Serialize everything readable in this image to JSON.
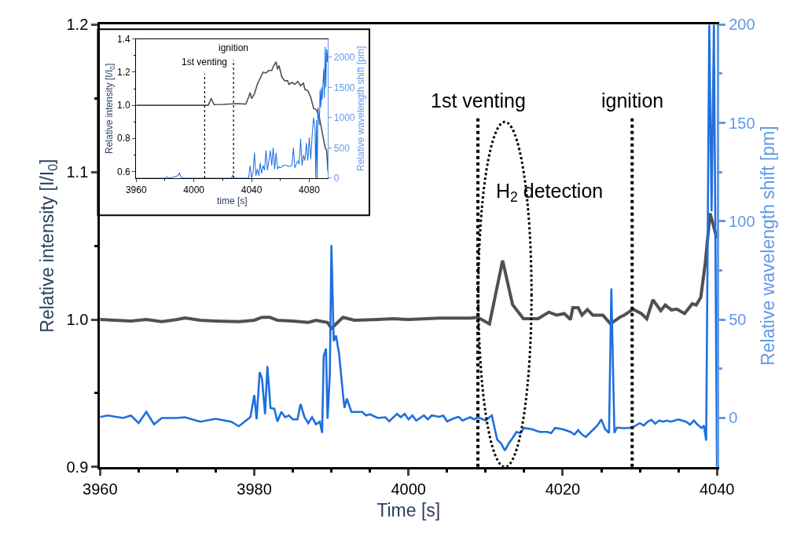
{
  "chart_data": [
    {
      "type": "line",
      "xlabel": "Time [s]",
      "ylabel": "Relative intensity [I/I$_{0}$]",
      "y2label": "Relative wavelength shift [pm]",
      "xlim": [
        3960,
        4040
      ],
      "xticks": [
        3960,
        {
          "value": 3965,
          "label": null
        },
        {
          "value": 3970,
          "label": null
        },
        {
          "value": 3975,
          "label": null
        },
        3980,
        {
          "value": 3985,
          "label": null
        },
        {
          "value": 3990,
          "label": null
        },
        {
          "value": 3995,
          "label": null
        },
        4000,
        {
          "value": 4005,
          "label": null
        },
        {
          "value": 4010,
          "label": null
        },
        {
          "value": 4015,
          "label": null
        },
        4020,
        {
          "value": 4025,
          "label": null
        },
        {
          "value": 4030,
          "label": null
        },
        {
          "value": 4035,
          "label": null
        },
        4040
      ],
      "ylim": [
        0.9,
        1.2
      ],
      "yticks": [
        0.9,
        {
          "value": 0.95,
          "label": null
        },
        {
          "value": 1.0,
          "label": "1.0"
        },
        {
          "value": 1.05,
          "label": null
        },
        1.1,
        {
          "value": 1.15,
          "label": null
        },
        1.2
      ],
      "y2lim": [
        -25,
        200
      ],
      "y2ticks": [
        0,
        {
          "value": 25,
          "label": null
        },
        50,
        {
          "value": 75,
          "label": null
        },
        100,
        {
          "value": 125,
          "label": null
        },
        150,
        {
          "value": 175,
          "label": null
        },
        200
      ],
      "grid": false,
      "marker": "none",
      "line_style": "solid",
      "series": [
        {
          "color": "#505050",
          "x": [
            3960,
            3962,
            3964,
            3966,
            3968,
            3970,
            3971,
            3973,
            3975,
            3978,
            3980,
            3981,
            3982,
            3983,
            3985,
            3987,
            3988,
            3989.5,
            3990,
            3991.5,
            3993,
            3996,
            3998,
            4000,
            4004,
            4008,
            4009,
            4010.5,
            4012.2,
            4013.5,
            4014.9,
            4016.8,
            4018.2,
            4019.2,
            4020.2,
            4021,
            4021.3,
            4022,
            4022.5,
            4023.2,
            4023.9,
            4025.2,
            4026.2,
            4027.4,
            4028,
            4029.1,
            4030.2,
            4030.9,
            4031.7,
            4032.7,
            4033.3,
            4034.1,
            4034.8,
            4035.8,
            4036.8,
            4037.3,
            4037.9,
            4038.5,
            4039.1,
            4040
          ],
          "values": [
            1.0,
            0.9995,
            0.999,
            1.0,
            0.9985,
            1.0,
            1.001,
            0.9995,
            0.999,
            0.9985,
            0.9995,
            1.0015,
            1.0015,
            0.9995,
            0.999,
            0.998,
            0.9995,
            0.998,
            0.994,
            1.0015,
            0.9995,
            1.0,
            1.0005,
            1.0,
            1.001,
            1.001,
            1.0015,
            0.997,
            1.04,
            1.01,
            1.0005,
            1.0005,
            1.005,
            1.003,
            1.004,
            1.0,
            1.008,
            1.008,
            1.003,
            1.0067,
            1.003,
            1.003,
            0.997,
            1.0015,
            1.003,
            1.007,
            1.004,
            1.0005,
            1.0134,
            1.006,
            1.0098,
            1.0065,
            1.007,
            1.004,
            1.0107,
            1.0098,
            1.015,
            1.039,
            1.072,
            1.055
          ]
        },
        {
          "color": "#1f6fdf",
          "axis": "y2",
          "x": [
            3960,
            3961,
            3963,
            3964,
            3965,
            3966,
            3967,
            3968,
            3970,
            3971,
            3973,
            3975,
            3977,
            3978,
            3979.5,
            3980,
            3980.3,
            3980.7,
            3981,
            3981.4,
            3981.7,
            3982.1,
            3982.6,
            3983,
            3983.5,
            3984,
            3984.5,
            3985,
            3985.6,
            3986,
            3986.5,
            3987,
            3987.5,
            3988,
            3988.5,
            3988.8,
            3989,
            3989.3,
            3989.5,
            3989.8,
            3990,
            3990.3,
            3990.6,
            3991,
            3991.5,
            3991.7,
            3992,
            3992.6,
            3994,
            3994.5,
            3995,
            3996,
            3997,
            3997.5,
            3998.5,
            3999,
            3999.5,
            4000,
            4000.5,
            4001,
            4002,
            4002.5,
            4003,
            4004,
            4004.5,
            4005,
            4006,
            4006.5,
            4007,
            4008,
            4008.5,
            4009,
            4010,
            4010.5,
            4010.8,
            4011.5,
            4012,
            4012.5,
            4013,
            4013.5,
            4014,
            4014.5,
            4015,
            4016,
            4017,
            4018,
            4018.5,
            4019,
            4020,
            4021,
            4021.5,
            4022,
            4022.5,
            4023,
            4024,
            4024.5,
            4025,
            4025.5,
            4026,
            4026.3,
            4026.7,
            4027,
            4028,
            4029,
            4030,
            4030.5,
            4031,
            4031.5,
            4032,
            4032.5,
            4033,
            4033.5,
            4034,
            4035,
            4036,
            4036.5,
            4037,
            4037.5,
            4038,
            4038.3,
            4038.6,
            4039,
            4039.3,
            4039.6,
            4040
          ],
          "values": [
            0.4,
            1.2,
            -0.1,
            1.2,
            -2.7,
            3,
            -3.3,
            -0.1,
            -0.1,
            0.3,
            -2,
            -0.5,
            -2,
            -4.3,
            0.4,
            11.6,
            -0.8,
            23.2,
            20,
            1.8,
            26.3,
            5,
            4.6,
            -1.9,
            3,
            0.3,
            1.2,
            -0.8,
            -0.8,
            7,
            0.4,
            -2.7,
            0.3,
            -3.3,
            -2,
            -7.7,
            31.3,
            35.2,
            -0.5,
            22.4,
            87.8,
            39,
            41.8,
            32.5,
            12,
            5,
            9.8,
            3,
            3,
            1.2,
            1.8,
            -0.1,
            0.3,
            -1.8,
            2,
            0.3,
            2,
            -0.8,
            1.2,
            -1.4,
            1.2,
            -0.8,
            1.2,
            0.5,
            1.2,
            -1.8,
            -0.1,
            0.5,
            -1.4,
            0.3,
            -0.8,
            0.3,
            -1.4,
            0.3,
            1.2,
            -11.1,
            -13,
            -16.6,
            -13,
            -10.3,
            -7.2,
            -7.8,
            -5.2,
            -5.8,
            -7.2,
            -7.2,
            -7.8,
            -5.2,
            -5.8,
            -7.2,
            -8.5,
            -6.3,
            -8.5,
            -9.7,
            -5.8,
            -3.9,
            -0.8,
            -5.8,
            -7.7,
            65.8,
            -7.7,
            -5,
            -5.3,
            -5,
            -2.7,
            -3.9,
            -2,
            -1,
            -3,
            -1.4,
            -2,
            -1.4,
            -2,
            -0.8,
            -2,
            -3.5,
            -1.4,
            -3.5,
            -5.2,
            -3.9,
            -11.6,
            200,
            105,
            200,
            -25
          ]
        }
      ],
      "ref_lines": [
        {
          "axis": "x",
          "value": 4009,
          "label": "1st venting",
          "line_style": "dotted",
          "color": "#000000"
        },
        {
          "axis": "x",
          "value": 4029,
          "label": "ignition",
          "line_style": "dotted",
          "color": "#000000"
        }
      ],
      "annotations": [
        {
          "text": "H$_{2}$ detection",
          "x": 4012.5,
          "y": 1.04
        }
      ]
    },
    {
      "type": "line",
      "xlabel": "time [s]",
      "ylabel": "Relative intensity [I/I$_{0}$]",
      "y2label": "Relative wavelength shift [pm]",
      "xlim": [
        3960,
        4093
      ],
      "xticks": [
        3960,
        {
          "value": 3980,
          "label": null
        },
        4000,
        {
          "value": 4020,
          "label": null
        },
        4040,
        {
          "value": 4060,
          "label": null
        },
        4080
      ],
      "ylim": [
        0.56,
        1.4
      ],
      "yticks": [
        0.6,
        {
          "value": 0.7,
          "label": null
        },
        0.8,
        {
          "value": 0.9,
          "label": null
        },
        {
          "value": 1.0,
          "label": "1.0"
        },
        {
          "value": 1.1,
          "label": null
        },
        1.2,
        {
          "value": 1.3,
          "label": null
        },
        1.4
      ],
      "y2lim": [
        0,
        2300
      ],
      "y2ticks": [
        0,
        500,
        1000,
        1500,
        2000
      ],
      "grid": false,
      "marker": "none",
      "line_style": "solid",
      "series": [
        {
          "color": "#505050",
          "x": [
            3960,
            3980,
            4000,
            4010,
            4012,
            4014,
            4020,
            4030,
            4036,
            4038,
            4039,
            4040,
            4042,
            4044,
            4046,
            4048,
            4050,
            4052,
            4054,
            4055,
            4057,
            4058,
            4059,
            4061,
            4063,
            4065,
            4066,
            4068,
            4070,
            4072,
            4074,
            4076,
            4077,
            4079,
            4081,
            4083,
            4085,
            4087,
            4089,
            4091,
            4092,
            4093
          ],
          "values": [
            1.0,
            1.0,
            1.0,
            1.0,
            1.042,
            1.004,
            1.005,
            1.01,
            1.007,
            1.05,
            1.077,
            1.04,
            1.07,
            1.126,
            1.164,
            1.2,
            1.195,
            1.21,
            1.21,
            1.232,
            1.263,
            1.217,
            1.24,
            1.171,
            1.148,
            1.148,
            1.126,
            1.138,
            1.126,
            1.144,
            1.118,
            1.133,
            1.095,
            1.088,
            1.049,
            0.981,
            0.973,
            0.927,
            0.836,
            0.745,
            0.729,
            0.6
          ]
        },
        {
          "color": "#1f6fdf",
          "axis": "y2",
          "x": [
            3960,
            3980,
            3981,
            3983,
            3989,
            3990,
            3991,
            3993,
            4026,
            4027,
            4028,
            4038,
            4039,
            4040,
            4041,
            4042,
            4043,
            4044,
            4045,
            4046,
            4047,
            4048,
            4049,
            4050,
            4051,
            4052,
            4053,
            4054,
            4055,
            4056,
            4057,
            4058,
            4059,
            4060,
            4062,
            4064,
            4066,
            4068,
            4069,
            4070,
            4072,
            4073,
            4074,
            4075,
            4076,
            4077,
            4078,
            4079,
            4080,
            4081,
            4082,
            4083,
            4084,
            4084.5,
            4085,
            4085.5,
            4086,
            4087,
            4087.5,
            4088,
            4088.5,
            4089,
            4090,
            4090.5,
            4091,
            4091.5,
            4092,
            4092.5,
            4093
          ],
          "values": [
            0,
            0,
            20,
            0,
            40,
            90,
            20,
            0,
            0,
            50,
            0,
            0,
            210,
            0,
            80,
            420,
            40,
            150,
            40,
            250,
            80,
            210,
            130,
            460,
            130,
            290,
            460,
            210,
            500,
            150,
            420,
            150,
            190,
            170,
            210,
            210,
            190,
            210,
            500,
            170,
            290,
            230,
            650,
            210,
            380,
            290,
            580,
            290,
            670,
            310,
            710,
            1000,
            790,
            0,
            960,
            0,
            1170,
            880,
            1460,
            1170,
            1500,
            1290,
            1810,
            1330,
            2170,
            1500,
            2130,
            1920,
            2130
          ]
        }
      ],
      "ref_lines": [
        {
          "axis": "x",
          "value": 4007.5,
          "label": "1st venting",
          "line_style": "dotted",
          "color": "#000000"
        },
        {
          "axis": "x",
          "value": 4027.5,
          "label": "ignition",
          "line_style": "dotted",
          "color": "#000000"
        }
      ]
    }
  ]
}
